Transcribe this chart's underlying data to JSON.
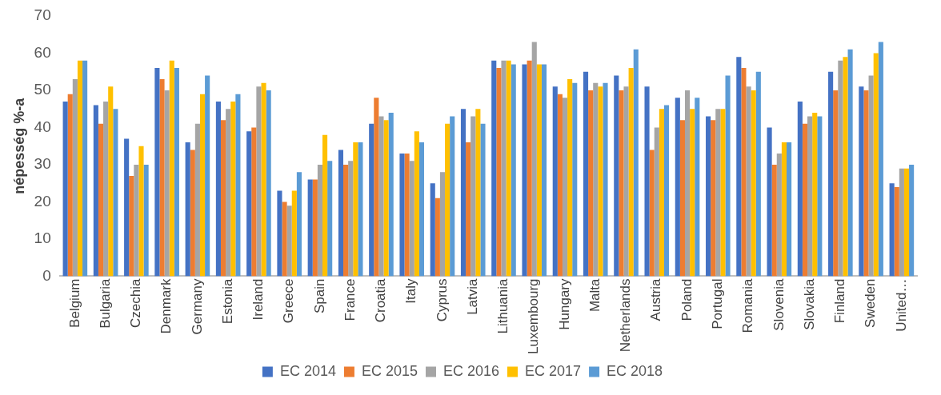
{
  "chart_data": {
    "type": "bar",
    "ylabel": "népesség %-a",
    "categories": [
      "Belgium",
      "Bulgaria",
      "Czechia",
      "Denmark",
      "Germany",
      "Estonia",
      "Ireland",
      "Greece",
      "Spain",
      "France",
      "Croatia",
      "Italy",
      "Cyprus",
      "Latvia",
      "Lithuania",
      "Luxembourg",
      "Hungary",
      "Malta",
      "Netherlands",
      "Austria",
      "Poland",
      "Portugal",
      "Romania",
      "Slovenia",
      "Slovakia",
      "Finland",
      "Sweden",
      "United…"
    ],
    "series": [
      {
        "name": "EC 2014",
        "color": "#4472c4",
        "values": [
          47,
          46,
          37,
          56,
          36,
          47,
          39,
          23,
          26,
          34,
          41,
          33,
          25,
          45,
          58,
          57,
          51,
          55,
          54,
          51,
          48,
          43,
          59,
          40,
          47,
          55,
          51,
          25
        ]
      },
      {
        "name": "EC 2015",
        "color": "#ed7d31",
        "values": [
          49,
          41,
          27,
          53,
          34,
          42,
          40,
          20,
          26,
          30,
          48,
          33,
          21,
          36,
          56,
          58,
          49,
          50,
          50,
          34,
          42,
          42,
          56,
          30,
          41,
          50,
          50,
          24
        ]
      },
      {
        "name": "EC 2016",
        "color": "#a5a5a5",
        "values": [
          53,
          47,
          30,
          50,
          41,
          45,
          51,
          19,
          30,
          31,
          43,
          31,
          28,
          43,
          58,
          63,
          48,
          52,
          51,
          40,
          50,
          45,
          51,
          33,
          43,
          58,
          54,
          29
        ]
      },
      {
        "name": "EC 2017",
        "color": "#ffc000",
        "values": [
          58,
          51,
          35,
          58,
          49,
          47,
          52,
          23,
          38,
          36,
          42,
          39,
          41,
          45,
          58,
          57,
          53,
          51,
          56,
          45,
          45,
          45,
          50,
          36,
          44,
          59,
          60,
          29
        ]
      },
      {
        "name": "EC 2018",
        "color": "#5b9bd5",
        "values": [
          58,
          45,
          30,
          56,
          54,
          49,
          50,
          28,
          31,
          36,
          44,
          36,
          43,
          41,
          57,
          57,
          52,
          52,
          61,
          46,
          48,
          54,
          55,
          36,
          43,
          61,
          63,
          30
        ]
      }
    ],
    "ylim": [
      0,
      70
    ],
    "yticks": [
      0,
      10,
      20,
      30,
      40,
      50,
      60,
      70
    ],
    "grid": false,
    "legend": "bottom"
  }
}
